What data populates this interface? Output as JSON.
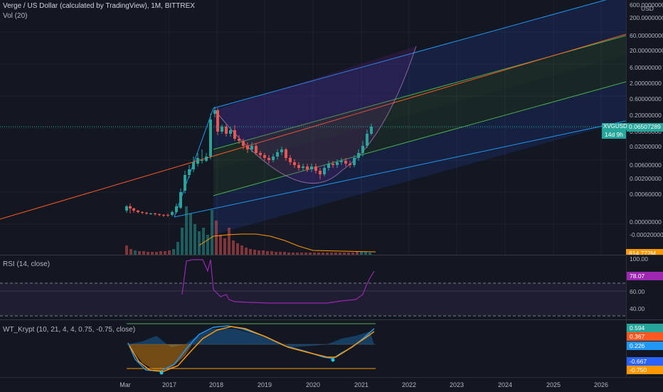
{
  "header": {
    "title": "Verge / US Dollar (calculated by TradingView), 1M, BITTREX",
    "vol": "Vol (20)"
  },
  "price_axis": {
    "currency": "USD",
    "ticks": [
      "600.00000000",
      "200.00000000",
      "60.00000000",
      "20.00000000",
      "6.00000000",
      "2.00000000",
      "0.60000000",
      "0.20000000",
      "0.06000000",
      "0.02000000",
      "0.00600000",
      "0.00200000",
      "0.00060000",
      "0.00000000",
      "-0.00020000",
      "-0.00080000"
    ],
    "symbol_badge": "XVGUSD",
    "price_badge": "0.06507289",
    "countdown": "14d 9h",
    "volume_badge": "814.772M"
  },
  "rsi": {
    "label": "RSI (14, close)",
    "ticks": [
      "100.00",
      "60.00",
      "40.00"
    ],
    "value_badge": "78.07"
  },
  "wt": {
    "label": "WT_Krypt (10, 21, 4, 4, 0.75, -0.75, close)",
    "badges": [
      "0.594",
      "0.367",
      "0.226",
      "-0.667",
      "-0.750"
    ]
  },
  "time_axis": {
    "labels": [
      "Mar",
      "2017",
      "2018",
      "2019",
      "2020",
      "2021",
      "2022",
      "2023",
      "2024",
      "2025",
      "2026"
    ]
  },
  "colors": {
    "background": "#131722",
    "up": "#26a69a",
    "down": "#ef5350",
    "channel_blue": "#2196f3",
    "channel_green": "#4caf50",
    "channel_red": "#ff5722",
    "rsi_line": "#9c27b0",
    "wt_blue": "#2196f3",
    "wt_orange": "#ff9800"
  },
  "chart_data": {
    "type": "candlestick",
    "symbol": "XVGUSD",
    "interval": "1M",
    "last_price": 0.06507289,
    "rsi_last": 78.07,
    "volume_last": "814.772M",
    "y_scale": "log"
  }
}
